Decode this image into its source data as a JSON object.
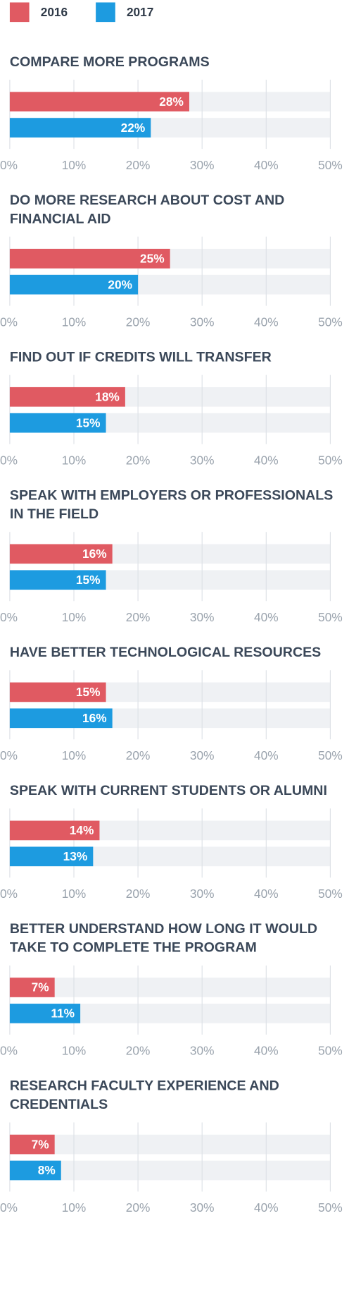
{
  "legend": [
    {
      "name": "2016",
      "color": "#e05a62"
    },
    {
      "name": "2017",
      "color": "#1d9be0"
    }
  ],
  "chart_data": [
    {
      "type": "bar",
      "title": "COMPARE MORE PROGRAMS",
      "values": [
        28,
        22
      ],
      "value_labels": [
        "28%",
        "22%"
      ],
      "xlim": [
        0,
        50
      ],
      "xticks": [
        {
          "value": 0,
          "label": "0%"
        },
        {
          "value": 10,
          "label": "10%"
        },
        {
          "value": 20,
          "label": "20%"
        },
        {
          "value": 30,
          "label": "30%"
        },
        {
          "value": 40,
          "label": "40%"
        },
        {
          "value": 50,
          "label": "50%"
        }
      ]
    },
    {
      "type": "bar",
      "title": "DO MORE RESEARCH ABOUT COST AND FINANCIAL AID",
      "values": [
        25,
        20
      ],
      "value_labels": [
        "25%",
        "20%"
      ],
      "xlim": [
        0,
        50
      ],
      "xticks": [
        {
          "value": 0,
          "label": "0%"
        },
        {
          "value": 10,
          "label": "10%"
        },
        {
          "value": 20,
          "label": "20%"
        },
        {
          "value": 30,
          "label": "30%"
        },
        {
          "value": 40,
          "label": "40%"
        },
        {
          "value": 50,
          "label": "50%"
        }
      ]
    },
    {
      "type": "bar",
      "title": "FIND OUT IF CREDITS WILL TRANSFER",
      "values": [
        18,
        15
      ],
      "value_labels": [
        "18%",
        "15%"
      ],
      "xlim": [
        0,
        50
      ],
      "xticks": [
        {
          "value": 0,
          "label": "0%"
        },
        {
          "value": 10,
          "label": "10%"
        },
        {
          "value": 20,
          "label": "20%"
        },
        {
          "value": 30,
          "label": "30%"
        },
        {
          "value": 40,
          "label": "40%"
        },
        {
          "value": 50,
          "label": "50%"
        }
      ]
    },
    {
      "type": "bar",
      "title": "SPEAK WITH EMPLOYERS OR PROFESSIONALS IN THE FIELD",
      "values": [
        16,
        15
      ],
      "value_labels": [
        "16%",
        "15%"
      ],
      "xlim": [
        0,
        50
      ],
      "xticks": [
        {
          "value": 0,
          "label": "0%"
        },
        {
          "value": 10,
          "label": "10%"
        },
        {
          "value": 20,
          "label": "20%"
        },
        {
          "value": 30,
          "label": "30%"
        },
        {
          "value": 40,
          "label": "40%"
        },
        {
          "value": 50,
          "label": "50%"
        }
      ]
    },
    {
      "type": "bar",
      "title": "HAVE BETTER TECHNOLOGICAL RESOURCES",
      "values": [
        15,
        16
      ],
      "value_labels": [
        "15%",
        "16%"
      ],
      "xlim": [
        0,
        50
      ],
      "xticks": [
        {
          "value": 0,
          "label": "0%"
        },
        {
          "value": 10,
          "label": "10%"
        },
        {
          "value": 20,
          "label": "20%"
        },
        {
          "value": 30,
          "label": "30%"
        },
        {
          "value": 40,
          "label": "40%"
        },
        {
          "value": 50,
          "label": "50%"
        }
      ]
    },
    {
      "type": "bar",
      "title": "SPEAK WITH CURRENT STUDENTS OR ALUMNI",
      "values": [
        14,
        13
      ],
      "value_labels": [
        "14%",
        "13%"
      ],
      "xlim": [
        0,
        50
      ],
      "xticks": [
        {
          "value": 0,
          "label": "0%"
        },
        {
          "value": 10,
          "label": "10%"
        },
        {
          "value": 20,
          "label": "20%"
        },
        {
          "value": 30,
          "label": "30%"
        },
        {
          "value": 40,
          "label": "40%"
        },
        {
          "value": 50,
          "label": "50%"
        }
      ]
    },
    {
      "type": "bar",
      "title": "BETTER UNDERSTAND HOW LONG IT WOULD TAKE TO COMPLETE THE PROGRAM",
      "values": [
        7,
        11
      ],
      "value_labels": [
        "7%",
        "11%"
      ],
      "xlim": [
        0,
        50
      ],
      "xticks": [
        {
          "value": 0,
          "label": "0%"
        },
        {
          "value": 10,
          "label": "10%"
        },
        {
          "value": 20,
          "label": "20%"
        },
        {
          "value": 30,
          "label": "30%"
        },
        {
          "value": 40,
          "label": "40%"
        },
        {
          "value": 50,
          "label": "50%"
        }
      ]
    },
    {
      "type": "bar",
      "title": "RESEARCH FACULTY EXPERIENCE AND CREDENTIALS",
      "values": [
        7,
        8
      ],
      "value_labels": [
        "7%",
        "8%"
      ],
      "xlim": [
        0,
        50
      ],
      "xticks": [
        {
          "value": 0,
          "label": "0%"
        },
        {
          "value": 10,
          "label": "10%"
        },
        {
          "value": 20,
          "label": "20%"
        },
        {
          "value": 30,
          "label": "30%"
        },
        {
          "value": 40,
          "label": "40%"
        },
        {
          "value": 50,
          "label": "50%"
        }
      ]
    }
  ]
}
